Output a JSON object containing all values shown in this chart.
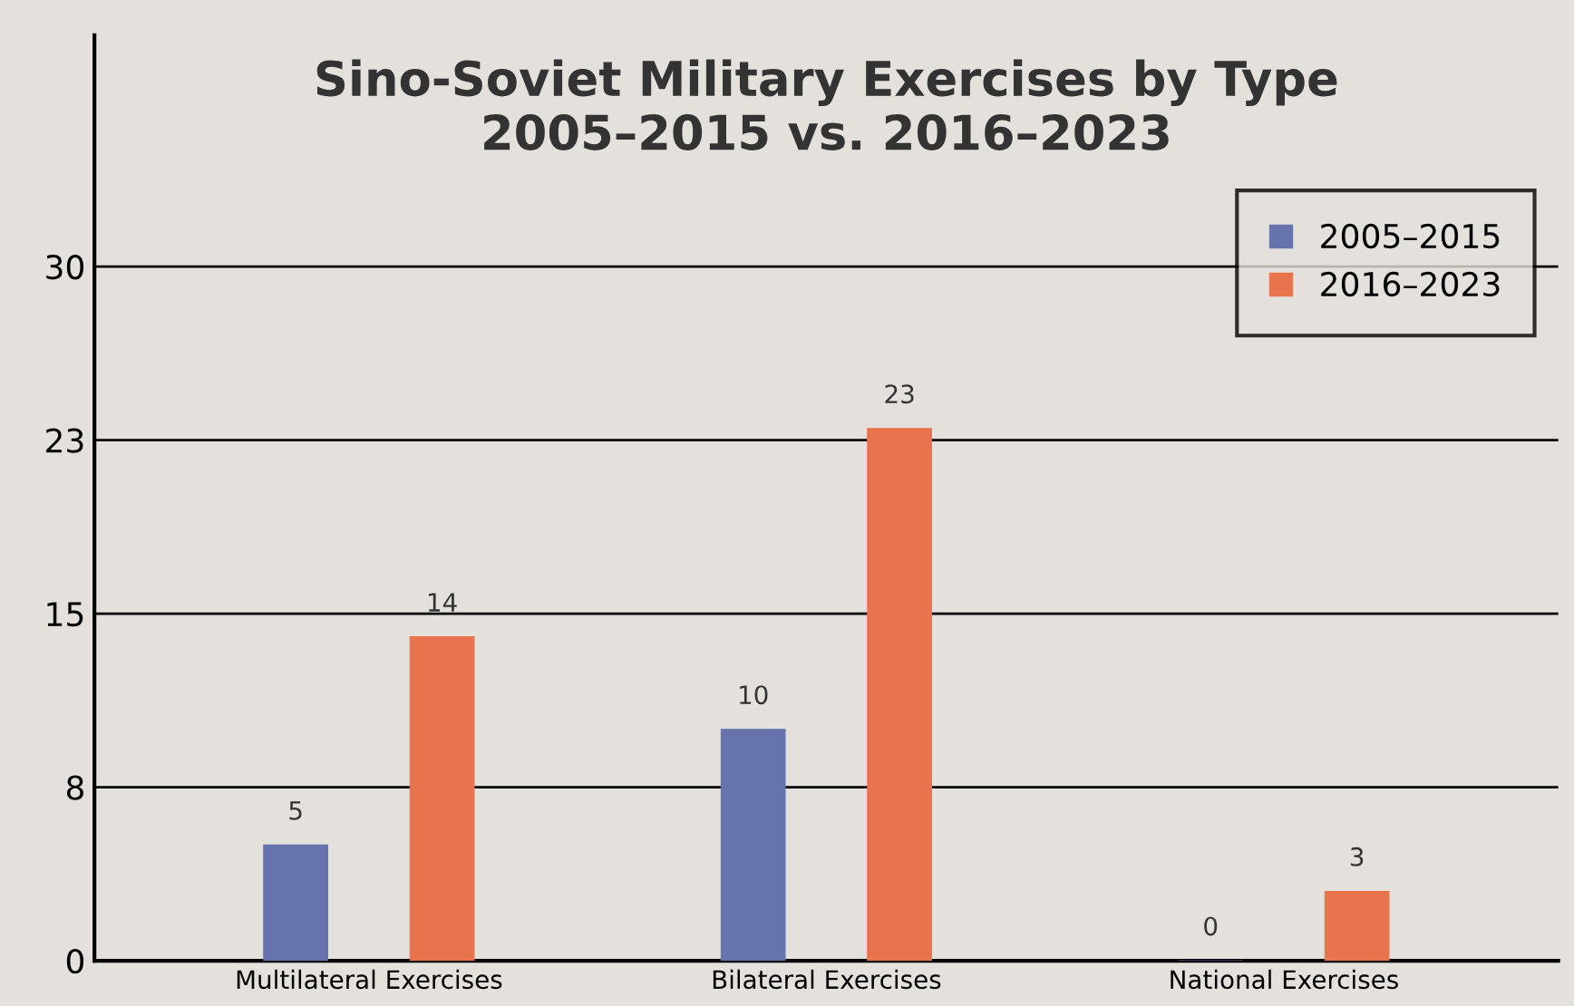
{
  "chart_data": {
    "type": "bar",
    "title": "Sino-Soviet Military Exercises by Type\n2005–2015 vs. 2016–2023",
    "categories": [
      "Multilateral Exercises",
      "Bilateral Exercises",
      "National Exercises"
    ],
    "series": [
      {
        "name": "2005–2015",
        "color": "#6673ad",
        "values": [
          5,
          10,
          0
        ]
      },
      {
        "name": "2016–2023",
        "color": "#e8744e",
        "values": [
          14,
          23,
          3
        ]
      }
    ],
    "ylim": [
      0,
      40
    ],
    "yticks": [
      0,
      {
        "value": 7.5,
        "label": "8"
      },
      15,
      {
        "value": 22.5,
        "label": "23"
      },
      30
    ],
    "grid": "y",
    "legend": "top right",
    "data_labels": true
  }
}
